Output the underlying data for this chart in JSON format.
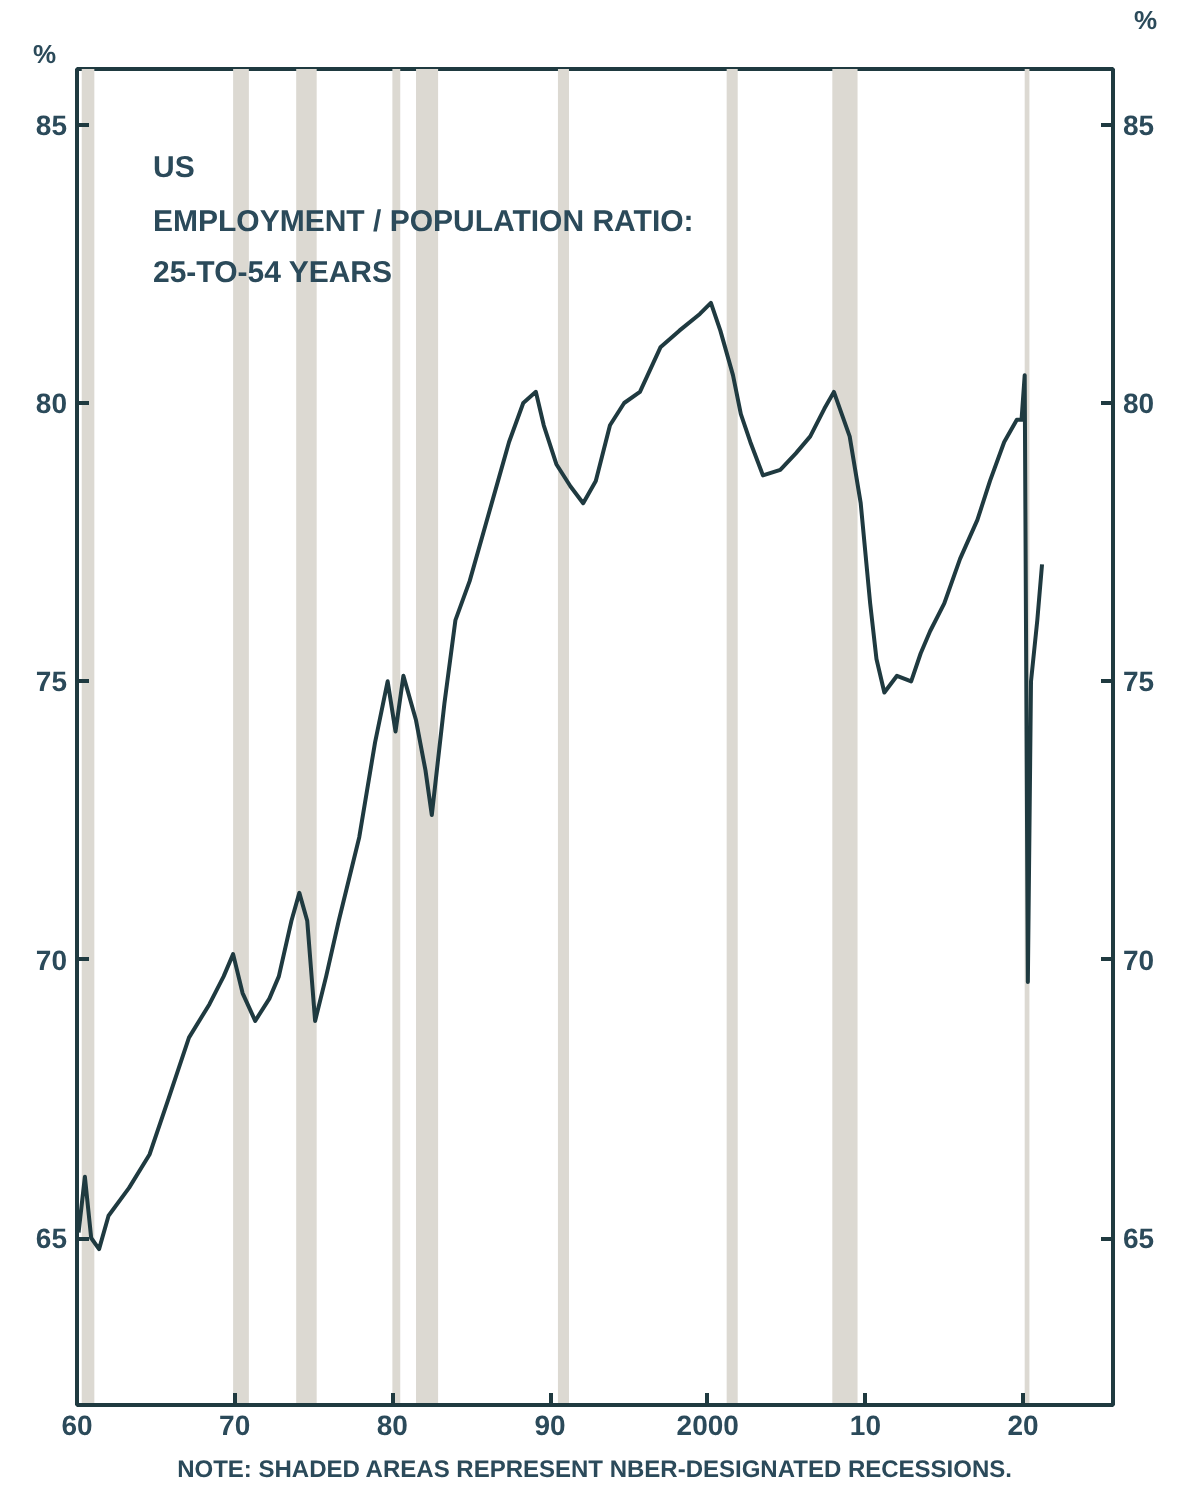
{
  "chart_data": {
    "type": "line",
    "title": "US",
    "subtitle": "EMPLOYMENT / POPULATION RATIO:\n25-TO-54 YEARS",
    "ylabel": "%",
    "y2label": "%",
    "annotations": [
      "NOTE: SHADED AREAS REPRESENT NBER-DESIGNATED RECESSIONS."
    ],
    "xlim": [
      1960,
      2025.7
    ],
    "xticks": [
      {
        "value": 1960,
        "label": "60"
      },
      {
        "value": 1970,
        "label": "70"
      },
      {
        "value": 1980,
        "label": "80"
      },
      {
        "value": 1990,
        "label": "90"
      },
      2000,
      {
        "value": 2010,
        "label": "10"
      },
      {
        "value": 2020,
        "label": "20"
      }
    ],
    "ylim": [
      62,
      86
    ],
    "yticks": [
      65,
      70,
      75,
      80,
      85
    ],
    "y2lim": [
      62,
      86
    ],
    "y2ticks": [
      65,
      70,
      75,
      80,
      85
    ],
    "grid": false,
    "bands": [
      {
        "axis": "x",
        "from": 1960.3,
        "to": 1961.1,
        "color": "#dcd9d2"
      },
      {
        "axis": "x",
        "from": 1969.9,
        "to": 1970.9,
        "color": "#dcd9d2"
      },
      {
        "axis": "x",
        "from": 1973.9,
        "to": 1975.2,
        "color": "#dcd9d2"
      },
      {
        "axis": "x",
        "from": 1980.0,
        "to": 1980.5,
        "color": "#dcd9d2"
      },
      {
        "axis": "x",
        "from": 1981.5,
        "to": 1982.9,
        "color": "#dcd9d2"
      },
      {
        "axis": "x",
        "from": 1990.5,
        "to": 1991.2,
        "color": "#dcd9d2"
      },
      {
        "axis": "x",
        "from": 2001.2,
        "to": 2001.9,
        "color": "#dcd9d2"
      },
      {
        "axis": "x",
        "from": 2007.9,
        "to": 2009.5,
        "color": "#dcd9d2"
      },
      {
        "axis": "x",
        "from": 2020.1,
        "to": 2020.4,
        "color": "#dcd9d2"
      }
    ],
    "series": [
      {
        "color": "#1f3a40",
        "x": [
          1960.1,
          1960.5,
          1960.9,
          1961.4,
          1962.0,
          1963.3,
          1964.6,
          1965.8,
          1967.1,
          1968.4,
          1969.3,
          1969.9,
          1970.5,
          1971.3,
          1972.2,
          1972.8,
          1973.6,
          1974.1,
          1974.6,
          1975.1,
          1975.8,
          1976.6,
          1977.9,
          1978.9,
          1979.7,
          1980.2,
          1980.7,
          1981.5,
          1982.1,
          1982.5,
          1983.3,
          1984.0,
          1984.9,
          1985.9,
          1986.8,
          1987.4,
          1988.3,
          1989.1,
          1989.6,
          1990.4,
          1991.3,
          1992.1,
          1992.9,
          1993.8,
          1994.7,
          1995.7,
          1997.0,
          1998.2,
          1999.5,
          2000.2,
          2000.8,
          2001.6,
          2002.1,
          2002.7,
          2003.5,
          2004.6,
          2005.6,
          2006.5,
          2007.4,
          2008.0,
          2008.5,
          2009.0,
          2009.7,
          2010.3,
          2010.7,
          2011.2,
          2012.0,
          2012.9,
          2013.5,
          2014.1,
          2015.0,
          2016.0,
          2017.1,
          2017.9,
          2018.8,
          2019.6,
          2019.9,
          2020.1,
          2020.3,
          2020.5,
          2020.9,
          2021.2
        ],
        "values": [
          65.1,
          66.1,
          65.0,
          64.8,
          65.4,
          65.9,
          66.5,
          67.5,
          68.6,
          69.2,
          69.7,
          70.1,
          69.4,
          68.9,
          69.3,
          69.7,
          70.7,
          71.2,
          70.7,
          68.9,
          69.7,
          70.7,
          72.2,
          73.9,
          75.0,
          74.1,
          75.1,
          74.3,
          73.4,
          72.6,
          74.6,
          76.1,
          76.8,
          77.8,
          78.7,
          79.3,
          80.0,
          80.2,
          79.6,
          78.9,
          78.5,
          78.2,
          78.6,
          79.6,
          80.0,
          80.2,
          81.0,
          81.3,
          81.6,
          81.8,
          81.3,
          80.5,
          79.8,
          79.3,
          78.7,
          78.8,
          79.1,
          79.4,
          79.9,
          80.2,
          79.8,
          79.4,
          78.2,
          76.4,
          75.4,
          74.8,
          75.1,
          75.0,
          75.5,
          75.9,
          76.4,
          77.2,
          77.9,
          78.6,
          79.3,
          79.7,
          79.7,
          80.5,
          69.6,
          75.0,
          76.1,
          77.1
        ]
      }
    ]
  }
}
